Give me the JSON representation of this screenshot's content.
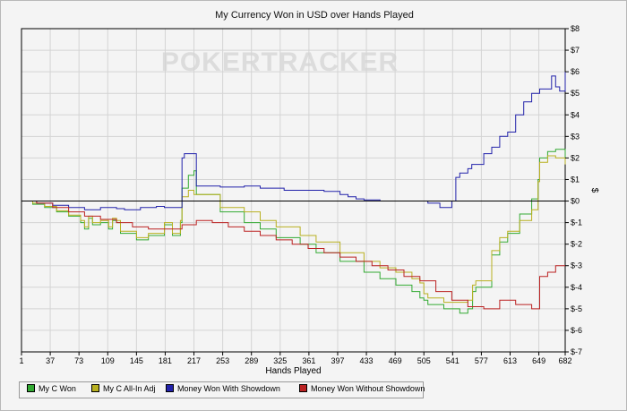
{
  "chart_data": {
    "type": "line",
    "title": "My Currency Won in USD over Hands Played",
    "xlabel": "Hands Played",
    "ylabel": "$",
    "xlim": [
      1,
      682
    ],
    "ylim": [
      -7,
      8
    ],
    "x_ticks": [
      1,
      37,
      73,
      109,
      145,
      181,
      217,
      253,
      289,
      325,
      361,
      397,
      433,
      469,
      505,
      541,
      577,
      613,
      649,
      682
    ],
    "y_ticks": [
      "$-7",
      "$-6",
      "$-5",
      "$-4",
      "$-3",
      "$-2",
      "$-1",
      "$0",
      "$1",
      "$2",
      "$3",
      "$4",
      "$5",
      "$6",
      "$7",
      "$8"
    ],
    "grid": true,
    "legend_position": "bottom-left",
    "watermark": "POKERTRACKER",
    "series": [
      {
        "name": "My C Won",
        "color": "#33aa33",
        "x": [
          1,
          15,
          30,
          45,
          60,
          75,
          80,
          85,
          90,
          100,
          110,
          115,
          120,
          125,
          145,
          160,
          180,
          190,
          200,
          202,
          210,
          217,
          220,
          250,
          280,
          300,
          320,
          350,
          370,
          400,
          430,
          450,
          470,
          490,
          500,
          505,
          510,
          530,
          550,
          560,
          566,
          570,
          590,
          600,
          610,
          625,
          640,
          648,
          650,
          660,
          670,
          682
        ],
        "y": [
          0,
          -0.15,
          -0.3,
          -0.5,
          -0.7,
          -1.0,
          -1.3,
          -0.8,
          -1.1,
          -1.0,
          -1.3,
          -0.9,
          -1.0,
          -1.5,
          -1.8,
          -1.6,
          -1.1,
          -1.6,
          -1.0,
          0.6,
          1.2,
          1.4,
          0.3,
          -0.5,
          -1.0,
          -1.3,
          -1.7,
          -2.0,
          -2.4,
          -2.8,
          -3.3,
          -3.6,
          -3.9,
          -4.2,
          -4.5,
          -4.6,
          -4.8,
          -5.0,
          -5.2,
          -5.0,
          -4.2,
          -4.0,
          -2.5,
          -1.9,
          -1.5,
          -0.6,
          0.1,
          1.0,
          2.0,
          2.3,
          2.4,
          2.0
        ]
      },
      {
        "name": "My C All-In Adj",
        "color": "#b8b020",
        "x": [
          1,
          15,
          30,
          45,
          60,
          75,
          80,
          85,
          90,
          100,
          110,
          115,
          120,
          125,
          145,
          160,
          180,
          190,
          200,
          202,
          210,
          217,
          220,
          250,
          280,
          300,
          320,
          350,
          370,
          400,
          430,
          450,
          470,
          490,
          500,
          505,
          510,
          530,
          550,
          560,
          566,
          570,
          590,
          600,
          610,
          625,
          640,
          648,
          650,
          660,
          670,
          682
        ],
        "y": [
          0,
          -0.1,
          -0.25,
          -0.45,
          -0.65,
          -0.9,
          -1.2,
          -0.7,
          -1.0,
          -0.9,
          -1.2,
          -0.8,
          -0.9,
          -1.4,
          -1.7,
          -1.5,
          -1.0,
          -1.5,
          -0.9,
          0.2,
          0.5,
          0.3,
          0.3,
          -0.3,
          -0.5,
          -0.9,
          -1.2,
          -1.6,
          -1.9,
          -2.4,
          -2.8,
          -3.1,
          -3.3,
          -3.6,
          -3.8,
          -4.3,
          -4.5,
          -4.7,
          -4.7,
          -4.6,
          -3.9,
          -3.7,
          -2.3,
          -1.7,
          -1.4,
          -0.9,
          -0.4,
          0.9,
          1.8,
          2.1,
          2.0,
          1.7
        ]
      },
      {
        "name": "Money Won With Showdown",
        "color": "#2222aa",
        "x": [
          1,
          10,
          20,
          40,
          60,
          80,
          90,
          100,
          110,
          120,
          130,
          150,
          170,
          180,
          190,
          200,
          202,
          205,
          220,
          230,
          250,
          280,
          300,
          330,
          360,
          380,
          400,
          410,
          420,
          430,
          450,
          470,
          500,
          510,
          525,
          540,
          545,
          550,
          560,
          565,
          580,
          590,
          600,
          610,
          620,
          630,
          640,
          650,
          660,
          665,
          670,
          675,
          682
        ],
        "y": [
          0,
          0,
          -0.1,
          -0.2,
          -0.3,
          -0.4,
          -0.4,
          -0.3,
          -0.3,
          -0.35,
          -0.4,
          -0.3,
          -0.25,
          -0.3,
          -0.3,
          -0.3,
          2.0,
          2.2,
          0.7,
          0.7,
          0.65,
          0.7,
          0.6,
          0.5,
          0.5,
          0.45,
          0.3,
          0.2,
          0.1,
          0.05,
          0.0,
          0.0,
          0.0,
          -0.1,
          -0.3,
          0.0,
          1.1,
          1.3,
          1.5,
          1.7,
          2.2,
          2.5,
          3.0,
          3.2,
          4.0,
          4.6,
          5.0,
          5.2,
          5.2,
          5.8,
          5.3,
          5.1,
          6.0
        ]
      },
      {
        "name": "Money Won Without Showdown",
        "color": "#bb2222",
        "x": [
          1,
          20,
          40,
          60,
          80,
          100,
          120,
          140,
          160,
          180,
          200,
          202,
          220,
          240,
          260,
          280,
          300,
          320,
          340,
          360,
          380,
          400,
          420,
          440,
          460,
          480,
          500,
          520,
          540,
          560,
          580,
          600,
          620,
          640,
          647,
          650,
          660,
          670,
          682
        ],
        "y": [
          0,
          -0.1,
          -0.3,
          -0.5,
          -0.7,
          -0.85,
          -1.0,
          -1.2,
          -1.3,
          -1.3,
          -1.3,
          -1.1,
          -0.9,
          -1.0,
          -1.2,
          -1.4,
          -1.6,
          -1.8,
          -2.0,
          -2.2,
          -2.4,
          -2.6,
          -2.8,
          -3.0,
          -3.2,
          -3.5,
          -3.7,
          -4.2,
          -4.6,
          -4.9,
          -5.0,
          -4.6,
          -4.8,
          -5.0,
          -5.0,
          -3.5,
          -3.3,
          -3.0,
          -3.0
        ]
      }
    ]
  }
}
